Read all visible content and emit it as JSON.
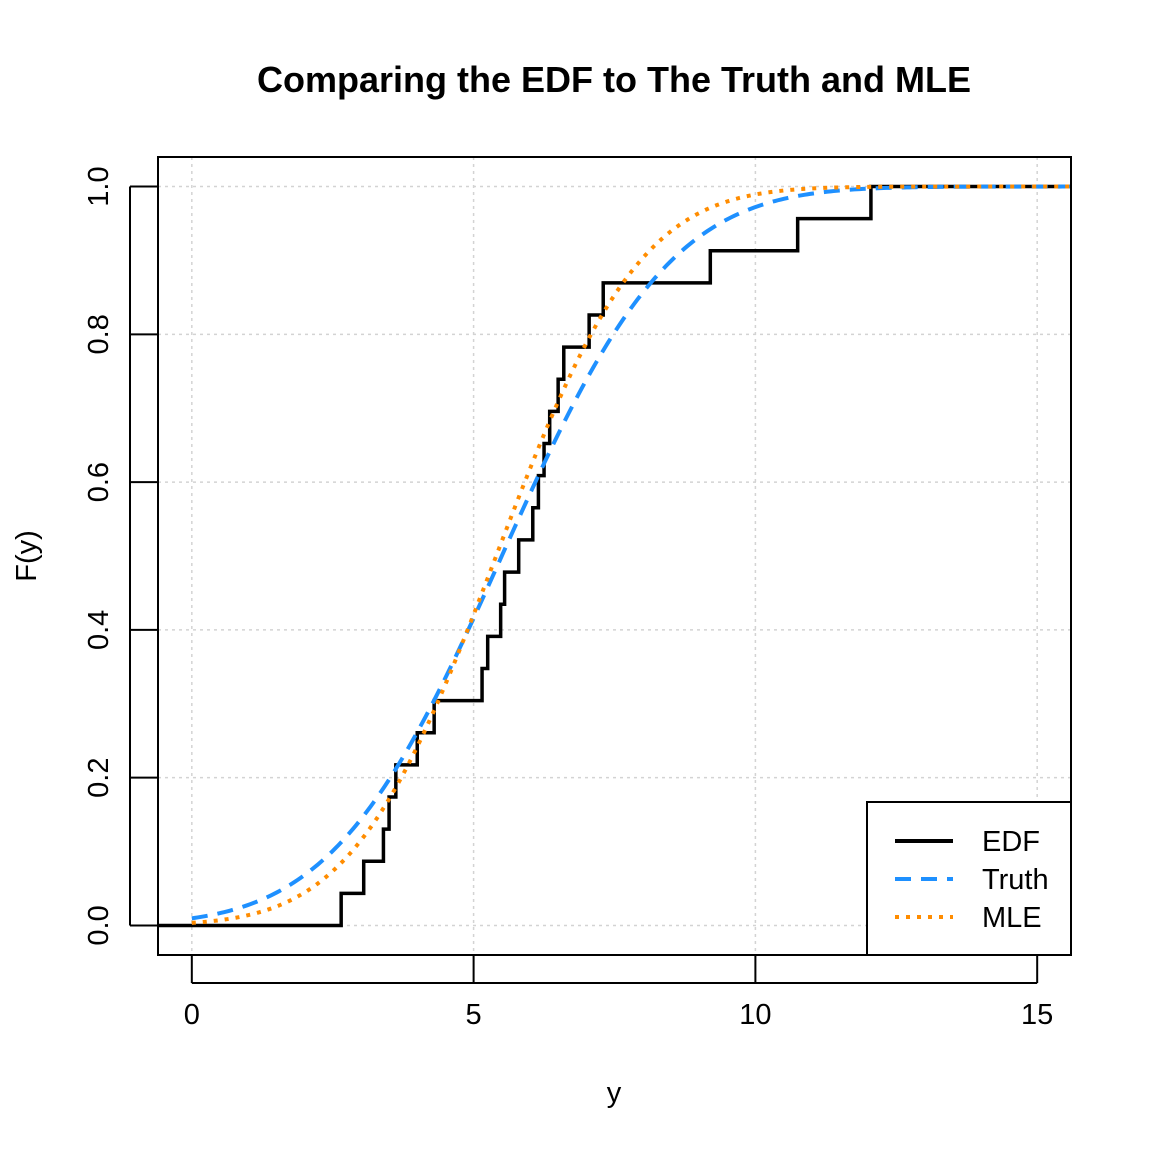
{
  "chart_data": {
    "type": "line",
    "title": "Comparing the EDF to The Truth and MLE",
    "xlabel": "y",
    "ylabel": "F(y)",
    "xlim": [
      -0.6,
      15.6
    ],
    "ylim": [
      -0.04,
      1.04
    ],
    "x_ticks": [
      0,
      5,
      10,
      15
    ],
    "x_tick_labels": [
      "0",
      "5",
      "10",
      "15"
    ],
    "y_ticks": [
      0.0,
      0.2,
      0.4,
      0.6,
      0.8,
      1.0
    ],
    "y_tick_labels": [
      "0.0",
      "0.2",
      "0.4",
      "0.6",
      "0.8",
      "1.0"
    ],
    "grid": true,
    "legend_position": "bottom-right",
    "series": [
      {
        "name": "EDF",
        "style": "step",
        "color": "#000000",
        "dash": "solid",
        "sample_points": [
          2.65,
          3.05,
          3.4,
          3.5,
          3.62,
          4.0,
          4.3,
          5.15,
          5.25,
          5.48,
          5.55,
          5.8,
          6.05,
          6.15,
          6.25,
          6.35,
          6.5,
          6.6,
          7.05,
          7.3,
          9.2,
          10.75,
          12.05
        ]
      },
      {
        "name": "Truth",
        "style": "curve",
        "color": "#1e90ff",
        "dash": "dashed",
        "distribution": "normal",
        "mean": 5.5,
        "sd": 2.35
      },
      {
        "name": "MLE",
        "style": "curve",
        "color": "#ff8c00",
        "dash": "dotted",
        "distribution": "normal",
        "mean": 5.4,
        "sd": 2.0
      }
    ]
  }
}
